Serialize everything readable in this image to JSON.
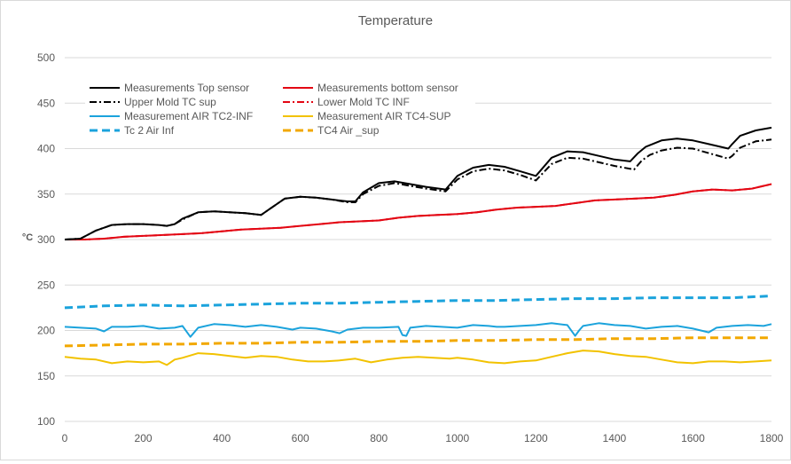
{
  "chart_data": {
    "type": "line",
    "title": "Temperature",
    "ylabel": "°C",
    "xlabel": "",
    "xlim": [
      0,
      1800
    ],
    "ylim": [
      100,
      500
    ],
    "xticks": [
      "0",
      "200",
      "400",
      "600",
      "800",
      "1000",
      "1200",
      "1400",
      "1600",
      "1800"
    ],
    "yticks": [
      "100",
      "150",
      "200",
      "250",
      "300",
      "350",
      "400",
      "450",
      "500"
    ],
    "grid": "horizontal",
    "legend_position": "top-left inside",
    "series": [
      {
        "name": "Measurements Top sensor",
        "color": "#000000",
        "style": "solid",
        "x": [
          0,
          40,
          80,
          120,
          160,
          200,
          240,
          260,
          280,
          300,
          340,
          380,
          420,
          460,
          500,
          520,
          560,
          600,
          640,
          680,
          720,
          740,
          760,
          800,
          840,
          880,
          920,
          970,
          1000,
          1040,
          1080,
          1120,
          1160,
          1200,
          1240,
          1280,
          1320,
          1360,
          1400,
          1440,
          1460,
          1480,
          1520,
          1560,
          1600,
          1640,
          1690,
          1700,
          1720,
          1760,
          1800
        ],
        "y": [
          300,
          301,
          310,
          316,
          317,
          317,
          316,
          315,
          317,
          323,
          330,
          331,
          330,
          329,
          327,
          333,
          345,
          347,
          346,
          344,
          342,
          342,
          352,
          362,
          364,
          361,
          358,
          355,
          370,
          379,
          382,
          380,
          375,
          370,
          390,
          397,
          396,
          392,
          388,
          386,
          395,
          402,
          409,
          411,
          409,
          405,
          400,
          405,
          414,
          420,
          423
        ]
      },
      {
        "name": "Measurements bottom sensor",
        "color": "#e30613",
        "style": "solid",
        "x": [
          0,
          50,
          100,
          150,
          200,
          250,
          300,
          350,
          400,
          450,
          500,
          550,
          600,
          650,
          700,
          750,
          800,
          850,
          900,
          950,
          1000,
          1050,
          1100,
          1150,
          1200,
          1250,
          1300,
          1350,
          1400,
          1450,
          1500,
          1550,
          1600,
          1650,
          1700,
          1750,
          1800
        ],
        "y": [
          300,
          300,
          301,
          303,
          304,
          305,
          306,
          307,
          309,
          311,
          312,
          313,
          315,
          317,
          319,
          320,
          321,
          324,
          326,
          327,
          328,
          330,
          333,
          335,
          336,
          337,
          340,
          343,
          344,
          345,
          346,
          349,
          353,
          355,
          354,
          356,
          361
        ]
      },
      {
        "name": "Upper Mold TC sup",
        "color": "#000000",
        "style": "dashdot",
        "x": [
          0,
          40,
          80,
          120,
          160,
          200,
          240,
          260,
          280,
          300,
          340,
          380,
          420,
          460,
          500,
          520,
          560,
          600,
          640,
          680,
          720,
          740,
          760,
          800,
          840,
          880,
          920,
          970,
          1000,
          1040,
          1080,
          1120,
          1160,
          1200,
          1240,
          1280,
          1320,
          1360,
          1400,
          1450,
          1470,
          1490,
          1520,
          1560,
          1600,
          1640,
          1690,
          1700,
          1720,
          1760,
          1800
        ],
        "y": [
          300,
          301,
          310,
          316,
          317,
          317,
          316,
          315,
          317,
          322,
          330,
          331,
          330,
          329,
          327,
          333,
          345,
          347,
          346,
          344,
          341,
          341,
          350,
          359,
          362,
          359,
          356,
          353,
          366,
          375,
          378,
          376,
          371,
          365,
          383,
          390,
          389,
          385,
          381,
          377,
          387,
          393,
          398,
          401,
          400,
          395,
          389,
          392,
          401,
          408,
          410
        ]
      },
      {
        "name": "Lower Mold TC INF",
        "color": "#e30613",
        "style": "dashdot",
        "x": [
          0,
          50,
          100,
          150,
          200,
          250,
          300,
          350,
          400,
          450,
          500,
          550,
          600,
          650,
          700,
          750,
          800,
          850,
          900,
          950,
          1000,
          1050,
          1100,
          1150,
          1200,
          1250,
          1300,
          1350,
          1400,
          1450,
          1500,
          1550,
          1600,
          1650,
          1700,
          1750,
          1800
        ],
        "y": [
          300,
          300,
          301,
          303,
          304,
          305,
          306,
          307,
          309,
          311,
          312,
          313,
          315,
          317,
          319,
          320,
          321,
          324,
          326,
          327,
          328,
          330,
          333,
          335,
          336,
          337,
          340,
          343,
          344,
          345,
          346,
          349,
          353,
          355,
          354,
          356,
          361
        ]
      },
      {
        "name": "Measurement AIR TC2-INF",
        "color": "#1ba3dc",
        "style": "solid",
        "x": [
          0,
          40,
          80,
          100,
          120,
          160,
          200,
          240,
          280,
          300,
          320,
          340,
          380,
          420,
          460,
          500,
          540,
          580,
          600,
          640,
          680,
          700,
          720,
          760,
          800,
          850,
          860,
          870,
          880,
          920,
          960,
          1000,
          1040,
          1080,
          1100,
          1120,
          1160,
          1200,
          1240,
          1280,
          1300,
          1310,
          1320,
          1360,
          1400,
          1440,
          1480,
          1520,
          1560,
          1600,
          1640,
          1660,
          1700,
          1740,
          1780,
          1800
        ],
        "y": [
          204,
          203,
          202,
          199,
          204,
          204,
          205,
          202,
          203,
          205,
          193,
          203,
          207,
          206,
          204,
          206,
          204,
          201,
          203,
          202,
          199,
          197,
          201,
          203,
          203,
          204,
          195,
          194,
          203,
          205,
          204,
          203,
          206,
          205,
          204,
          204,
          205,
          206,
          208,
          206,
          194,
          200,
          205,
          208,
          206,
          205,
          202,
          204,
          205,
          202,
          198,
          203,
          205,
          206,
          205,
          207
        ]
      },
      {
        "name": "Measurement AIR TC4-SUP",
        "color": "#f2c200",
        "style": "solid",
        "x": [
          0,
          40,
          80,
          120,
          160,
          200,
          240,
          260,
          280,
          300,
          340,
          380,
          420,
          460,
          500,
          540,
          580,
          620,
          660,
          700,
          740,
          780,
          820,
          860,
          900,
          940,
          980,
          1000,
          1040,
          1080,
          1120,
          1160,
          1200,
          1240,
          1280,
          1320,
          1360,
          1400,
          1440,
          1480,
          1520,
          1560,
          1600,
          1640,
          1680,
          1720,
          1760,
          1800
        ],
        "y": [
          171,
          169,
          168,
          164,
          166,
          165,
          166,
          162,
          168,
          170,
          175,
          174,
          172,
          170,
          172,
          171,
          168,
          166,
          166,
          167,
          169,
          165,
          168,
          170,
          171,
          170,
          169,
          170,
          168,
          165,
          164,
          166,
          167,
          171,
          175,
          178,
          177,
          174,
          172,
          171,
          168,
          165,
          164,
          166,
          166,
          165,
          166,
          167
        ]
      },
      {
        "name": "Tc 2 Air Inf",
        "color": "#1ba3dc",
        "style": "dash",
        "x": [
          0,
          100,
          200,
          300,
          400,
          500,
          600,
          700,
          800,
          900,
          1000,
          1100,
          1200,
          1300,
          1400,
          1500,
          1600,
          1700,
          1800
        ],
        "y": [
          225,
          227,
          228,
          227,
          228,
          229,
          230,
          230,
          231,
          232,
          233,
          233,
          234,
          235,
          235,
          236,
          236,
          236,
          238
        ]
      },
      {
        "name": "TC4 Air _sup",
        "color": "#f2a800",
        "style": "dash",
        "x": [
          0,
          100,
          200,
          300,
          400,
          500,
          600,
          700,
          800,
          900,
          1000,
          1100,
          1200,
          1300,
          1400,
          1500,
          1600,
          1700,
          1800
        ],
        "y": [
          183,
          184,
          185,
          185,
          186,
          186,
          187,
          187,
          188,
          188,
          189,
          189,
          190,
          190,
          191,
          191,
          192,
          192,
          192
        ]
      }
    ]
  }
}
